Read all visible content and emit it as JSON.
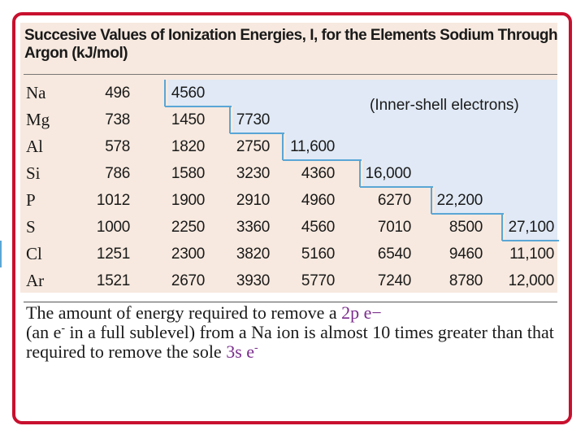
{
  "title": "Succesive Values of Ionization Energies, I, for the Elements Sodium Through Argon (kJ/mol)",
  "inner_shell_label": "(Inner-shell electrons)",
  "rows": [
    {
      "element": "Na",
      "values": [
        "496",
        "4560",
        "",
        "",
        "",
        "",
        ""
      ]
    },
    {
      "element": "Mg",
      "values": [
        "738",
        "1450",
        "7730",
        "",
        "",
        "",
        ""
      ]
    },
    {
      "element": "Al",
      "values": [
        "578",
        "1820",
        "2750",
        "11,600",
        "",
        "",
        ""
      ]
    },
    {
      "element": "Si",
      "values": [
        "786",
        "1580",
        "3230",
        "4360",
        "16,000",
        "",
        ""
      ]
    },
    {
      "element": "P",
      "values": [
        "1012",
        "1900",
        "2910",
        "4960",
        "6270",
        "22,200",
        ""
      ]
    },
    {
      "element": "S",
      "values": [
        "1000",
        "2250",
        "3360",
        "4560",
        "7010",
        "8500",
        "27,100"
      ]
    },
    {
      "element": "Cl",
      "values": [
        "1251",
        "2300",
        "3820",
        "5160",
        "6540",
        "9460",
        "11,100"
      ]
    },
    {
      "element": "Ar",
      "values": [
        "1521",
        "2670",
        "3930",
        "5770",
        "7240",
        "8780",
        "12,000"
      ]
    }
  ],
  "caption": {
    "part1": "The amount of energy required to remove a ",
    "orbital_2p": "2p",
    "part2": " e",
    "minus1": "−",
    "part3": "(an e",
    "minus2": "-",
    "part4": " in a full sublevel) from a Na ion is almost 10 times greater than that required to remove the sole ",
    "orbital_3s": "3s",
    "part5": " e",
    "minus3": "-"
  },
  "colors": {
    "frame": "#c8102e",
    "panel": "#f7e9df",
    "inner_shell_shade": "#e0e9f5",
    "step_line": "#5aa6d6",
    "orbital_highlight": "#7a2c8c"
  }
}
